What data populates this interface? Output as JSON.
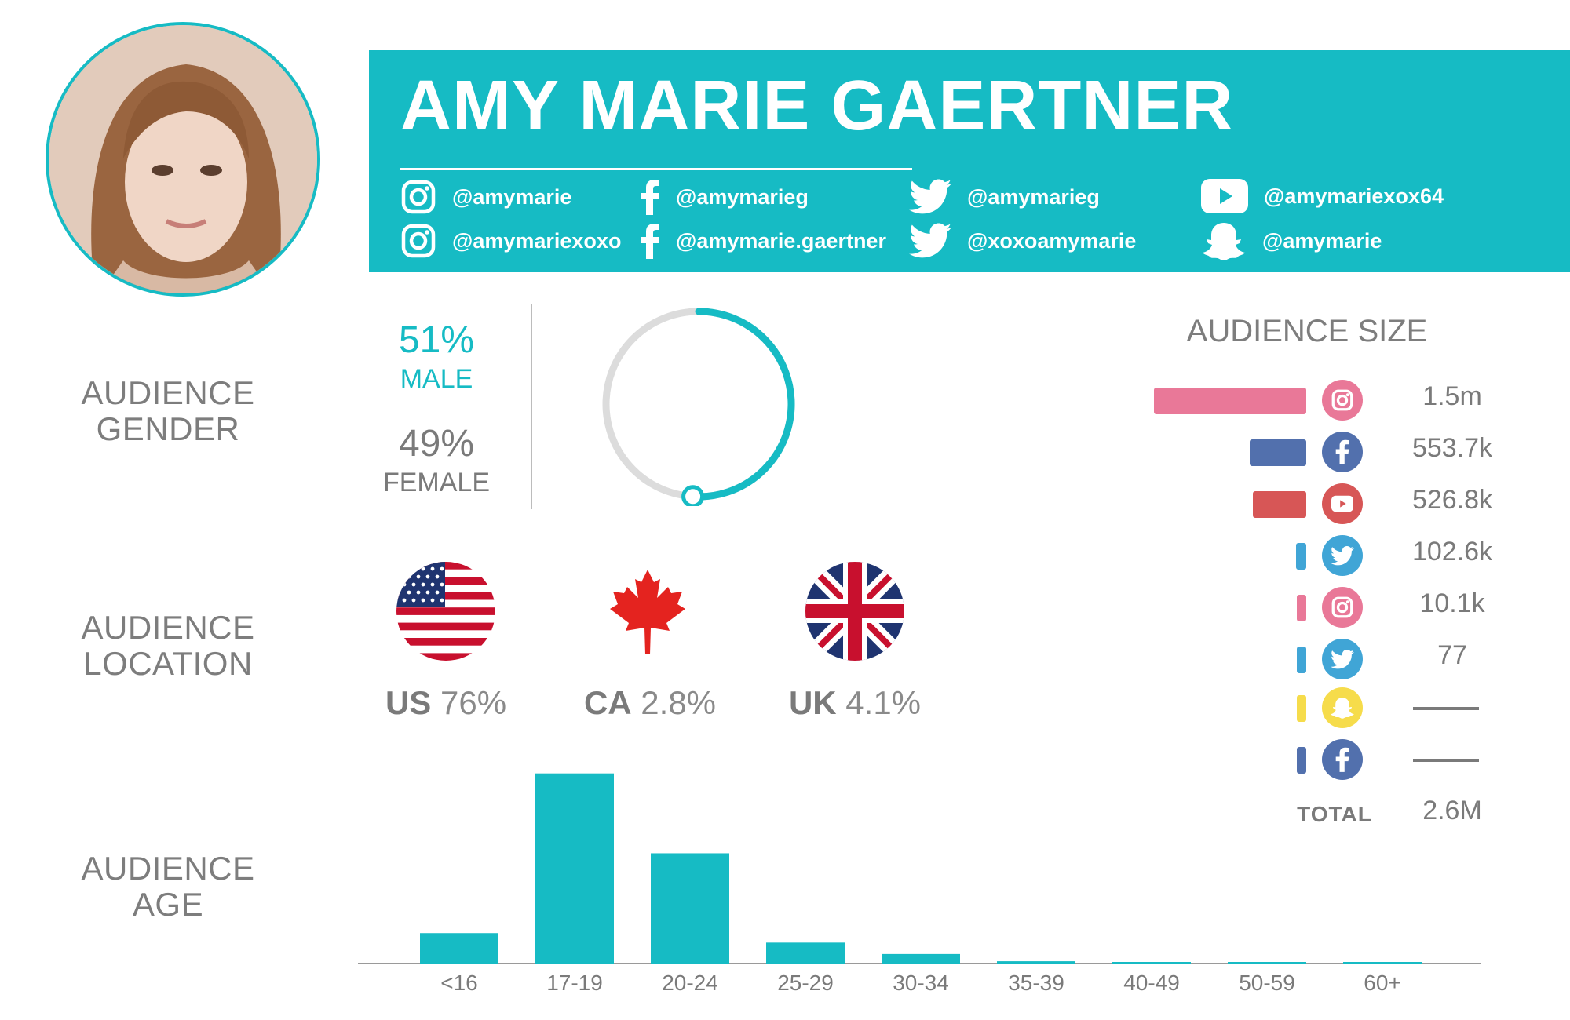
{
  "profile": {
    "name": "AMY MARIE GAERTNER"
  },
  "colors": {
    "accent": "#16bbc4",
    "gauge_track": "#dcdcdc",
    "text_gray": "#7a7a7a"
  },
  "handles": [
    {
      "icon": "instagram-icon",
      "text": "@amymarie"
    },
    {
      "icon": "facebook-icon",
      "text": "@amymarieg"
    },
    {
      "icon": "twitter-icon",
      "text": "@amymarieg"
    },
    {
      "icon": "youtube-icon",
      "text": "@amymariexox64"
    },
    {
      "icon": "instagram-icon",
      "text": "@amymariexoxo"
    },
    {
      "icon": "facebook-icon",
      "text": "@amymarie.gaertner"
    },
    {
      "icon": "twitter-icon",
      "text": "@xoxoamymarie"
    },
    {
      "icon": "snapchat-icon",
      "text": "@amymarie"
    }
  ],
  "gender": {
    "label_line1": "AUDIENCE",
    "label_line2": "GENDER",
    "male_pct": "51%",
    "male_label": "MALE",
    "female_pct": "49%",
    "female_label": "FEMALE",
    "male_fraction": 0.51
  },
  "location": {
    "label_line1": "AUDIENCE",
    "label_line2": "LOCATION",
    "countries": [
      {
        "code": "US",
        "pct": "76%",
        "icon": "us-flag-icon"
      },
      {
        "code": "CA",
        "pct": "2.8%",
        "icon": "canada-flag-icon"
      },
      {
        "code": "UK",
        "pct": "4.1%",
        "icon": "uk-flag-icon"
      }
    ]
  },
  "audience_size": {
    "title": "AUDIENCE SIZE",
    "rows": [
      {
        "platform": "instagram",
        "icon": "instagram-icon",
        "value": "1.5m",
        "amount": 1500000,
        "color": "#e97898"
      },
      {
        "platform": "facebook",
        "icon": "facebook-icon",
        "value": "553.7k",
        "amount": 553700,
        "color": "#5270ad"
      },
      {
        "platform": "youtube",
        "icon": "youtube-icon",
        "value": "526.8k",
        "amount": 526800,
        "color": "#d75656"
      },
      {
        "platform": "twitter",
        "icon": "twitter-icon",
        "value": "102.6k",
        "amount": 102600,
        "color": "#40a5d6"
      },
      {
        "platform": "instagram",
        "icon": "instagram-icon",
        "value": "10.1k",
        "amount": 10100,
        "color": "#e97898"
      },
      {
        "platform": "twitter",
        "icon": "twitter-icon",
        "value": "77",
        "amount": 77,
        "color": "#40a5d6"
      },
      {
        "platform": "snapchat",
        "icon": "snapchat-icon",
        "value": "",
        "amount": 0,
        "color": "#f6dc4b"
      },
      {
        "platform": "facebook",
        "icon": "facebook-icon",
        "value": "",
        "amount": 0,
        "color": "#5270ad"
      }
    ],
    "total_label": "TOTAL",
    "total_value": "2.6M"
  },
  "age": {
    "label_line1": "AUDIENCE",
    "label_line2": "AGE"
  },
  "chart_data": {
    "type": "bar",
    "categories": [
      "<16",
      "17-19",
      "20-24",
      "25-29",
      "30-34",
      "35-39",
      "40-49",
      "50-59",
      "60+"
    ],
    "values": [
      8,
      50,
      29,
      5.5,
      2.5,
      0.6,
      0.4,
      0.3,
      0.2
    ],
    "ylim": [
      0,
      52
    ],
    "grid": false,
    "legend": "none"
  }
}
